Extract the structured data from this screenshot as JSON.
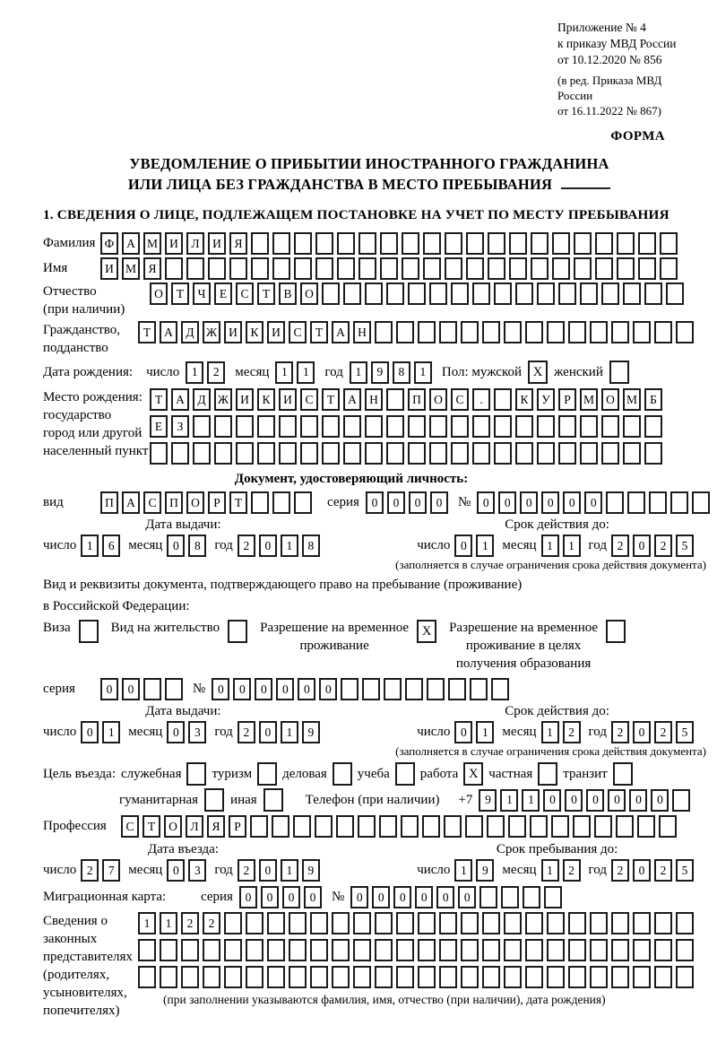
{
  "header": {
    "appendix_line1": "Приложение № 4",
    "appendix_line2": "к приказу МВД России",
    "appendix_line3": "от 10.12.2020 № 856",
    "edition_line1": "(в ред. Приказа МВД России",
    "edition_line2": "от 16.11.2022 № 867)",
    "form_label": "ФОРМА"
  },
  "title": {
    "line1": "УВЕДОМЛЕНИЕ О ПРИБЫТИИ ИНОСТРАННОГО ГРАЖДАНИНА",
    "line2": "ИЛИ ЛИЦА БЕЗ ГРАЖДАНСТВА В МЕСТО ПРЕБЫВАНИЯ"
  },
  "section1_heading": "1. СВЕДЕНИЯ О ЛИЦЕ, ПОДЛЕЖАЩЕМ ПОСТАНОВКЕ НА УЧЕТ ПО МЕСТУ ПРЕБЫВАНИЯ",
  "person": {
    "surname": {
      "label": "Фамилия",
      "text": "ФАМИЛИЯ",
      "len": 27
    },
    "given_name": {
      "label": "Имя",
      "text": "ИМЯ",
      "len": 27
    },
    "patronymic": {
      "label_line1": "Отчество",
      "label_line2": "(при наличии)",
      "text": "ОТЧЕСТВО",
      "len": 25
    },
    "citizenship": {
      "label_line1": "Гражданство,",
      "label_line2": "подданство",
      "text": "ТАДЖИКИСТАН",
      "len": 26
    },
    "birth_date": {
      "label": "Дата рождения:",
      "day_label": "число",
      "day": {
        "text": "12",
        "len": 2
      },
      "month_label": "месяц",
      "month": {
        "text": "11",
        "len": 2
      },
      "year_label": "год",
      "year": {
        "text": "1981",
        "len": 4
      }
    },
    "sex": {
      "male_label": "Пол: мужской",
      "male_box": {
        "text": "X",
        "len": 1
      },
      "female_label": "женский",
      "female_box": {
        "text": "",
        "len": 1
      }
    },
    "birth_place": {
      "label_line1": "Место рождения:",
      "label_line2": "государство",
      "label_line3": "город или другой",
      "label_line4": "населенный пункт",
      "row1": {
        "text": "ТАДЖИКИСТАН ПОС. КУРМОМБ",
        "len": 24
      },
      "row2": {
        "text": "ЕЗ",
        "len": 24
      },
      "row3": {
        "text": "",
        "len": 24
      }
    }
  },
  "identity_doc": {
    "heading": "Документ, удостоверяющий личность:",
    "kind_label": "вид",
    "kind": {
      "text": "ПАСПОРТ",
      "len": 10
    },
    "series_label": "серия",
    "series": {
      "text": "0000",
      "len": 4
    },
    "number_label": "№",
    "number": {
      "text": "000000",
      "len": 11
    },
    "issue_heading": "Дата выдачи:",
    "issue": {
      "day_label": "число",
      "day": {
        "text": "16",
        "len": 2
      },
      "month_label": "месяц",
      "month": {
        "text": "08",
        "len": 2
      },
      "year_label": "год",
      "year": {
        "text": "2018",
        "len": 4
      }
    },
    "valid_heading": "Срок действия до:",
    "valid": {
      "day_label": "число",
      "day": {
        "text": "01",
        "len": 2
      },
      "month_label": "месяц",
      "month": {
        "text": "11",
        "len": 2
      },
      "year_label": "год",
      "year": {
        "text": "2025",
        "len": 4
      }
    },
    "note": "(заполняется в случае ограничения срока действия документа)"
  },
  "residence_doc": {
    "heading_line1": "Вид и реквизиты документа, подтверждающего право на пребывание (проживание)",
    "heading_line2": "в Российской Федерации:",
    "visa_label": "Виза",
    "visa_box": {
      "text": "",
      "len": 1
    },
    "residence_permit_label": "Вид на жительство",
    "residence_permit_box": {
      "text": "",
      "len": 1
    },
    "temp_permit_line1": "Разрешение на временное",
    "temp_permit_line2": "проживание",
    "temp_permit_box": {
      "text": "X",
      "len": 1
    },
    "edu_permit_line1": "Разрешение на временное",
    "edu_permit_line2": "проживание в целях",
    "edu_permit_line3": "получения образования",
    "edu_permit_box": {
      "text": "",
      "len": 1
    },
    "series_label": "серия",
    "series": {
      "text": "00",
      "len": 4
    },
    "number_label": "№",
    "number": {
      "text": "000000",
      "len": 14
    },
    "issue_heading": "Дата выдачи:",
    "issue": {
      "day_label": "число",
      "day": {
        "text": "01",
        "len": 2
      },
      "month_label": "месяц",
      "month": {
        "text": "03",
        "len": 2
      },
      "year_label": "год",
      "year": {
        "text": "2019",
        "len": 4
      }
    },
    "valid_heading": "Срок действия до:",
    "valid": {
      "day_label": "число",
      "day": {
        "text": "01",
        "len": 2
      },
      "month_label": "месяц",
      "month": {
        "text": "12",
        "len": 2
      },
      "year_label": "год",
      "year": {
        "text": "2025",
        "len": 4
      }
    },
    "note": "(заполняется в случае ограничения срока действия документа)"
  },
  "visit": {
    "purpose_label": "Цель въезда:",
    "options_line1": [
      {
        "label": "служебная",
        "box": {
          "text": "",
          "len": 1
        }
      },
      {
        "label": "туризм",
        "box": {
          "text": "",
          "len": 1
        }
      },
      {
        "label": "деловая",
        "box": {
          "text": "",
          "len": 1
        }
      },
      {
        "label": "учеба",
        "box": {
          "text": "",
          "len": 1
        }
      },
      {
        "label": "работа",
        "box": {
          "text": "X",
          "len": 1
        }
      },
      {
        "label": "частная",
        "box": {
          "text": "",
          "len": 1
        }
      },
      {
        "label": "транзит",
        "box": {
          "text": "",
          "len": 1
        }
      }
    ],
    "options_line2": [
      {
        "label": "гуманитарная",
        "box": {
          "text": "",
          "len": 1
        }
      },
      {
        "label": "иная",
        "box": {
          "text": "",
          "len": 1
        }
      }
    ],
    "phone_label": "Телефон (при наличии)",
    "phone_prefix": "+7",
    "phone_digits": {
      "text": "911000000",
      "len": 10
    }
  },
  "profession": {
    "label": "Профессия",
    "text": "СТОЛЯР",
    "len": 26
  },
  "entry": {
    "heading": "Дата въезда:",
    "day_label": "число",
    "day": {
      "text": "27",
      "len": 2
    },
    "month_label": "месяц",
    "month": {
      "text": "03",
      "len": 2
    },
    "year_label": "год",
    "year": {
      "text": "2019",
      "len": 4
    }
  },
  "stay": {
    "heading": "Срок пребывания до:",
    "day_label": "число",
    "day": {
      "text": "19",
      "len": 2
    },
    "month_label": "месяц",
    "month": {
      "text": "12",
      "len": 2
    },
    "year_label": "год",
    "year": {
      "text": "2025",
      "len": 4
    }
  },
  "migration_card": {
    "label": "Миграционная карта:",
    "series_label": "серия",
    "series": {
      "text": "0000",
      "len": 4
    },
    "number_label": "№",
    "number": {
      "text": "000000",
      "len": 10
    }
  },
  "representatives": {
    "label_lines": [
      "Сведения о",
      "законных",
      "представителях",
      "(родителях,",
      "усыновителях,",
      "попечителях)"
    ],
    "row1": {
      "text": "1122",
      "len": 26
    },
    "row2": {
      "text": "",
      "len": 26
    },
    "row3": {
      "text": "",
      "len": 26
    },
    "note": "(при заполнении указываются фамилия, имя, отчество (при наличии), дата рождения)"
  }
}
